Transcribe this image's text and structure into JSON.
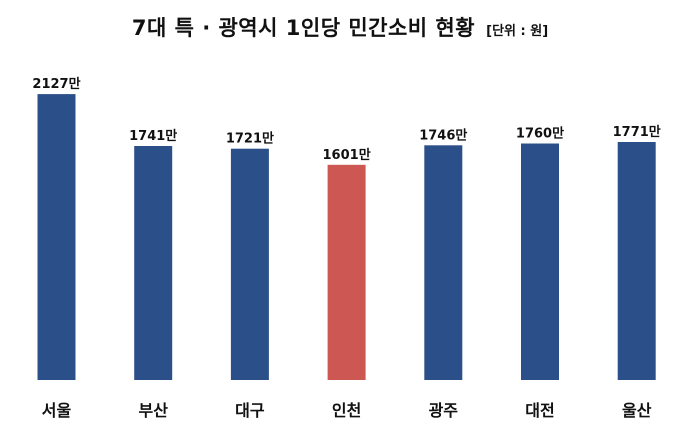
{
  "header": {
    "title": "7대 특 · 광역시 1인당 민간소비 현황",
    "unit": "[단위 : 원]"
  },
  "chart_data": {
    "type": "bar",
    "title": "7대 특 · 광역시 1인당 민간소비 현황",
    "unit_note": "[단위 : 원]",
    "categories": [
      "서울",
      "부산",
      "대구",
      "인천",
      "광주",
      "대전",
      "울산"
    ],
    "values": [
      2127,
      1741,
      1721,
      1601,
      1746,
      1760,
      1771
    ],
    "value_labels": [
      "2127만",
      "1741만",
      "1721만",
      "1601만",
      "1746만",
      "1760만",
      "1771만"
    ],
    "colors": [
      "#2b5089",
      "#2b5089",
      "#2b5089",
      "#cd5753",
      "#2b5089",
      "#2b5089",
      "#2b5089"
    ],
    "highlight_category": "인천",
    "grid": false,
    "legend": "none"
  }
}
